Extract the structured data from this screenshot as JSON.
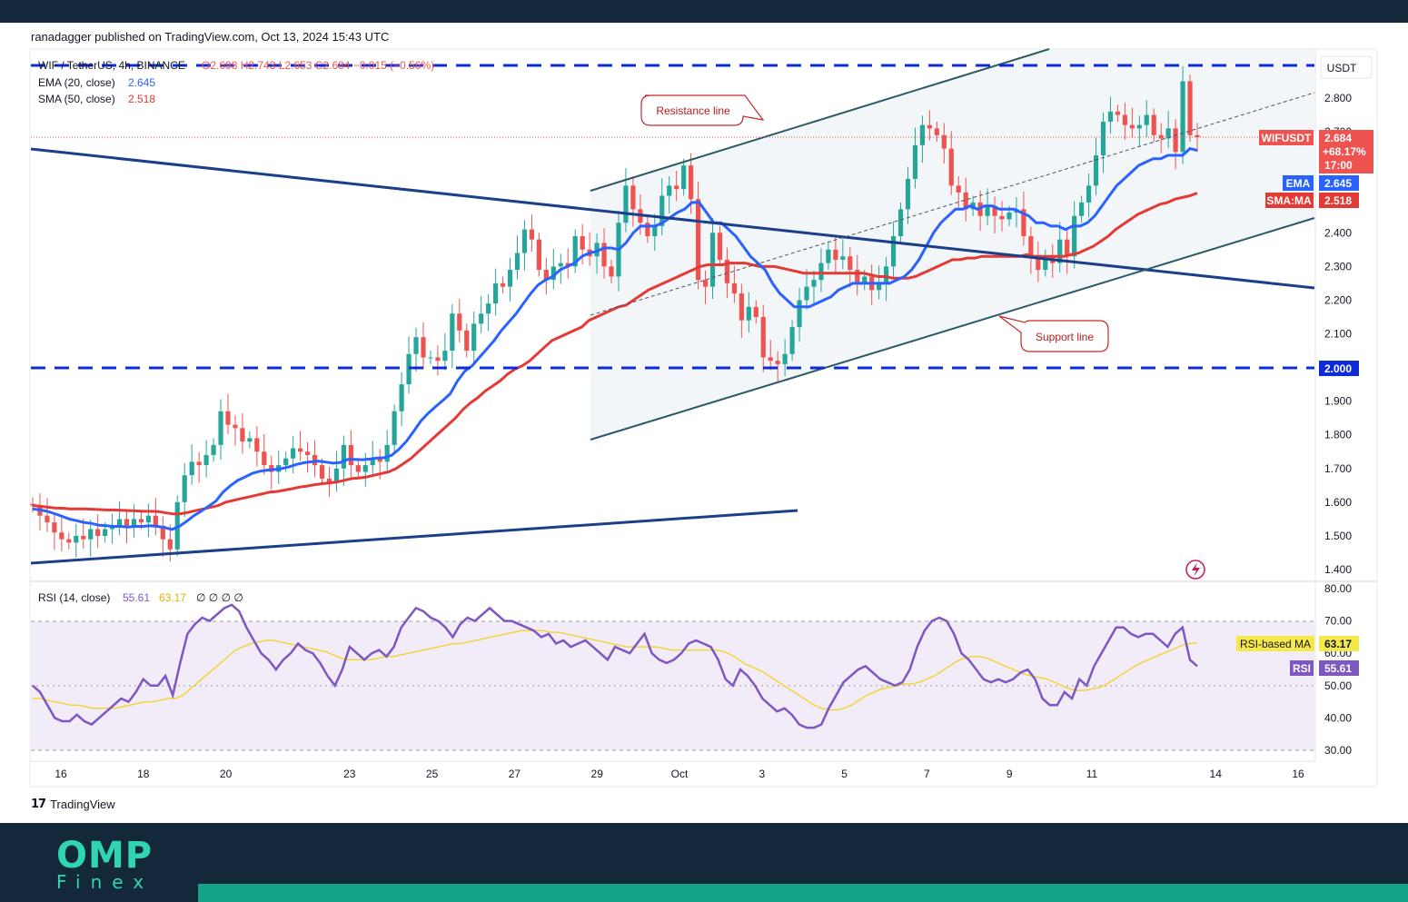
{
  "header": {
    "published": "ranadagger published on TradingView.com, Oct 13, 2024 15:43 UTC"
  },
  "footer": {
    "brand": "TradingView",
    "logo_main": "OMP",
    "logo_sub": "Finex"
  },
  "colors": {
    "ema": "#2962ff",
    "sma": "#e53935",
    "rsi": "#7e57c2",
    "rsi_ma": "#f5d33b",
    "trend": "#1c3f8c",
    "channel": "#2b5a66",
    "up": "#26a69a",
    "down": "#ef5350",
    "dashed": "#0d2bd6"
  },
  "chart_data": [
    {
      "type": "candlestick",
      "symbol_line": {
        "symbol": "WIF / TetherUS, 4h, BINANCE",
        "ohlc": "O2.698 H2.743 L2.653 C2.684 −0.015 (−0.56%)"
      },
      "indicators": [
        {
          "label": "EMA (20, close)",
          "value": "2.645"
        },
        {
          "label": "SMA (50, close)",
          "value": "2.518"
        }
      ],
      "currency": "USDT",
      "y_ticks": [
        "2.800",
        "2.700",
        "2.400",
        "2.300",
        "2.200",
        "2.100",
        "2.000",
        "1.900",
        "1.800",
        "1.700",
        "1.600",
        "1.500",
        "1.400"
      ],
      "x_ticks": [
        "16",
        "18",
        "20",
        "23",
        "25",
        "27",
        "29",
        "Oct",
        "3",
        "5",
        "7",
        "9",
        "11",
        "14",
        "16"
      ],
      "tags": [
        {
          "label": "WIFUSDT",
          "value": "2.684",
          "extra": [
            "+68.17%",
            "17:00"
          ]
        },
        {
          "label": "EMA",
          "value": "2.645"
        },
        {
          "label": "SMA:MA",
          "value": "2.518"
        },
        {
          "label": "",
          "value": "2.000"
        }
      ],
      "annotations": [
        "Resistance line",
        "Support line"
      ],
      "levels": [
        2.85,
        2.0
      ],
      "ohlc_closes": [
        1.59,
        1.56,
        1.54,
        1.51,
        1.49,
        1.48,
        1.5,
        1.49,
        1.52,
        1.5,
        1.52,
        1.53,
        1.55,
        1.53,
        1.55,
        1.54,
        1.56,
        1.53,
        1.49,
        1.46,
        1.6,
        1.68,
        1.72,
        1.71,
        1.74,
        1.77,
        1.87,
        1.83,
        1.82,
        1.78,
        1.79,
        1.75,
        1.71,
        1.69,
        1.71,
        1.73,
        1.76,
        1.75,
        1.74,
        1.71,
        1.67,
        1.66,
        1.7,
        1.77,
        1.71,
        1.69,
        1.71,
        1.73,
        1.72,
        1.77,
        1.87,
        1.95,
        2.04,
        2.09,
        2.03,
        2.03,
        2.02,
        2.05,
        2.16,
        2.11,
        2.05,
        2.13,
        2.16,
        2.19,
        2.25,
        2.24,
        2.29,
        2.34,
        2.41,
        2.38,
        2.29,
        2.26,
        2.3,
        2.31,
        2.3,
        2.39,
        2.35,
        2.33,
        2.37,
        2.3,
        2.27,
        2.43,
        2.54,
        2.47,
        2.43,
        2.39,
        2.42,
        2.51,
        2.54,
        2.53,
        2.6,
        2.5,
        2.26,
        2.24,
        2.4,
        2.32,
        2.25,
        2.22,
        2.14,
        2.18,
        2.15,
        2.03,
        2.02,
        2.01,
        2.04,
        2.12,
        2.2,
        2.24,
        2.26,
        2.31,
        2.35,
        2.32,
        2.33,
        2.29,
        2.25,
        2.27,
        2.23,
        2.25,
        2.3,
        2.39,
        2.47,
        2.56,
        2.66,
        2.72,
        2.71,
        2.69,
        2.65,
        2.54,
        2.52,
        2.47,
        2.49,
        2.45,
        2.48,
        2.45,
        2.44,
        2.46,
        2.47,
        2.39,
        2.33,
        2.29,
        2.33,
        2.31,
        2.38,
        2.33,
        2.45,
        2.49,
        2.54,
        2.63,
        2.73,
        2.76,
        2.75,
        2.72,
        2.71,
        2.72,
        2.75,
        2.69,
        2.68,
        2.71,
        2.64,
        2.85,
        2.69,
        2.684
      ],
      "ema": [
        1.58,
        1.577,
        1.573,
        1.566,
        1.558,
        1.55,
        1.545,
        1.54,
        1.537,
        1.532,
        1.53,
        1.528,
        1.528,
        1.526,
        1.528,
        1.528,
        1.53,
        1.528,
        1.525,
        1.519,
        1.528,
        1.543,
        1.56,
        1.573,
        1.588,
        1.603,
        1.63,
        1.649,
        1.665,
        1.675,
        1.686,
        1.692,
        1.695,
        1.697,
        1.7,
        1.705,
        1.712,
        1.717,
        1.72,
        1.722,
        1.719,
        1.716,
        1.718,
        1.727,
        1.727,
        1.726,
        1.728,
        1.731,
        1.732,
        1.739,
        1.757,
        1.78,
        1.81,
        1.841,
        1.864,
        1.884,
        1.902,
        1.922,
        1.96,
        1.989,
        2.005,
        2.03,
        2.055,
        2.08,
        2.11,
        2.135,
        2.16,
        2.19,
        2.22,
        2.245,
        2.26,
        2.27,
        2.29,
        2.3,
        2.31,
        2.33,
        2.34,
        2.345,
        2.355,
        2.355,
        2.35,
        2.37,
        2.4,
        2.42,
        2.42,
        2.42,
        2.43,
        2.445,
        2.46,
        2.47,
        2.49,
        2.49,
        2.46,
        2.43,
        2.43,
        2.41,
        2.39,
        2.36,
        2.33,
        2.31,
        2.29,
        2.25,
        2.22,
        2.2,
        2.18,
        2.18,
        2.18,
        2.19,
        2.2,
        2.21,
        2.23,
        2.24,
        2.25,
        2.25,
        2.25,
        2.25,
        2.25,
        2.25,
        2.26,
        2.27,
        2.29,
        2.32,
        2.36,
        2.4,
        2.43,
        2.45,
        2.47,
        2.47,
        2.48,
        2.47,
        2.48,
        2.48,
        2.47,
        2.47,
        2.47,
        2.46,
        2.45,
        2.43,
        2.43,
        2.42,
        2.42,
        2.41,
        2.42,
        2.42,
        2.43,
        2.45,
        2.48,
        2.51,
        2.54,
        2.56,
        2.58,
        2.6,
        2.61,
        2.62,
        2.62,
        2.63,
        2.63,
        2.63,
        2.65,
        2.645
      ],
      "sma": [
        1.59,
        1.588,
        1.585,
        1.583,
        1.582,
        1.58,
        1.58,
        1.58,
        1.579,
        1.578,
        1.577,
        1.577,
        1.576,
        1.575,
        1.574,
        1.573,
        1.573,
        1.572,
        1.568,
        1.565,
        1.566,
        1.57,
        1.575,
        1.58,
        1.585,
        1.59,
        1.6,
        1.605,
        1.61,
        1.615,
        1.62,
        1.625,
        1.63,
        1.632,
        1.636,
        1.64,
        1.645,
        1.648,
        1.652,
        1.655,
        1.657,
        1.66,
        1.665,
        1.67,
        1.672,
        1.675,
        1.68,
        1.685,
        1.69,
        1.7,
        1.715,
        1.73,
        1.75,
        1.77,
        1.79,
        1.81,
        1.83,
        1.85,
        1.875,
        1.895,
        1.91,
        1.93,
        1.945,
        1.96,
        1.98,
        1.995,
        2.005,
        2.02,
        2.04,
        2.06,
        2.08,
        2.09,
        2.1,
        2.11,
        2.12,
        2.14,
        2.15,
        2.16,
        2.17,
        2.18,
        2.185,
        2.2,
        2.215,
        2.23,
        2.24,
        2.25,
        2.26,
        2.27,
        2.28,
        2.29,
        2.3,
        2.305,
        2.305,
        2.305,
        2.31,
        2.31,
        2.31,
        2.305,
        2.3,
        2.3,
        2.3,
        2.295,
        2.29,
        2.285,
        2.28,
        2.28,
        2.28,
        2.28,
        2.28,
        2.28,
        2.28,
        2.28,
        2.28,
        2.275,
        2.27,
        2.27,
        2.265,
        2.265,
        2.265,
        2.27,
        2.28,
        2.29,
        2.3,
        2.31,
        2.32,
        2.32,
        2.325,
        2.325,
        2.33,
        2.33,
        2.33,
        2.33,
        2.33,
        2.33,
        2.335,
        2.33,
        2.33,
        2.33,
        2.33,
        2.33,
        2.335,
        2.34,
        2.35,
        2.36,
        2.375,
        2.39,
        2.41,
        2.425,
        2.44,
        2.455,
        2.465,
        2.475,
        2.485,
        2.49,
        2.5,
        2.505,
        2.51,
        2.518
      ],
      "rsi_label": "RSI (14, close)",
      "rsi_value": "55.61",
      "rsi_ma_value": "63.17",
      "rsi_extra": "∅ ∅ ∅ ∅",
      "rsi_ticks": [
        "80.00",
        "70.00",
        "60.00",
        "50.00",
        "40.00",
        "30.00"
      ],
      "rsi_tags": [
        {
          "label": "RSI-based MA",
          "value": "63.17"
        },
        {
          "label": "RSI",
          "value": "55.61"
        }
      ],
      "rsi": [
        50,
        48,
        44,
        40,
        39,
        39,
        41,
        39,
        38,
        40,
        42,
        44,
        46,
        45,
        48,
        52,
        50,
        50,
        53,
        47,
        57,
        66,
        69,
        71,
        70,
        72,
        74,
        75,
        73,
        68,
        64,
        60,
        58,
        55,
        58,
        60,
        63,
        61,
        60,
        57,
        53,
        50,
        55,
        62,
        60,
        58,
        60,
        61,
        59,
        62,
        68,
        71,
        74,
        73,
        71,
        70,
        68,
        65,
        69,
        71,
        70,
        72,
        74,
        72,
        70,
        70,
        69,
        68,
        67,
        65,
        66,
        63,
        64,
        62,
        63,
        64,
        62,
        60,
        58,
        62,
        61,
        60,
        63,
        66,
        60,
        58,
        57,
        58,
        60,
        63,
        64,
        63,
        62,
        58,
        52,
        50,
        55,
        53,
        50,
        46,
        44,
        42,
        43,
        41,
        38,
        37,
        37,
        38,
        43,
        47,
        51,
        53,
        55,
        56,
        54,
        52,
        51,
        50,
        51,
        55,
        62,
        67,
        70,
        71,
        70,
        66,
        60,
        58,
        55,
        52,
        51,
        52,
        51,
        52,
        54,
        55,
        52,
        46,
        44,
        44,
        48,
        46,
        52,
        50,
        56,
        60,
        64,
        68,
        68,
        66,
        65,
        66,
        66,
        64,
        62,
        66,
        68,
        58,
        56
      ],
      "rsi_ma": [
        46,
        46,
        45.5,
        45,
        44.5,
        44,
        44,
        43.5,
        43,
        43,
        43,
        43,
        43.5,
        44,
        44.5,
        45,
        45,
        45.5,
        46,
        46,
        47,
        49,
        51,
        53,
        55,
        57,
        59,
        61,
        62,
        63,
        63.5,
        64,
        64,
        63.5,
        63,
        62.5,
        62,
        61.5,
        61,
        60.5,
        59.5,
        58.5,
        58,
        58,
        58,
        58,
        58.5,
        59,
        59,
        59.5,
        60,
        60.5,
        61,
        61.5,
        62,
        62.5,
        63,
        63,
        63.5,
        64,
        64.5,
        65,
        65.5,
        66,
        66.5,
        67,
        67,
        67,
        67,
        66.5,
        66.5,
        66,
        65.5,
        65,
        64.5,
        64,
        63.5,
        63,
        62.5,
        62,
        62,
        62,
        62,
        62,
        61.5,
        61,
        61,
        61,
        61,
        61,
        61,
        61,
        60.5,
        59.5,
        58,
        56.5,
        55.5,
        54.5,
        53,
        51.5,
        50,
        48.5,
        47,
        45.5,
        44,
        43,
        42.5,
        42.5,
        43,
        44,
        45.5,
        47,
        48,
        49,
        49.5,
        50,
        50.5,
        50.5,
        51,
        52,
        53,
        54.5,
        56,
        57.5,
        58.5,
        59,
        59,
        58.5,
        57.5,
        56.5,
        55.5,
        54.5,
        53.5,
        53,
        52.5,
        52,
        51,
        50,
        49,
        48.5,
        48.5,
        49,
        49.5,
        50.5,
        52,
        53.5,
        55,
        56.5,
        57.5,
        58.5,
        59.5,
        60.5,
        61.5,
        62.5,
        63,
        63.17
      ]
    }
  ]
}
